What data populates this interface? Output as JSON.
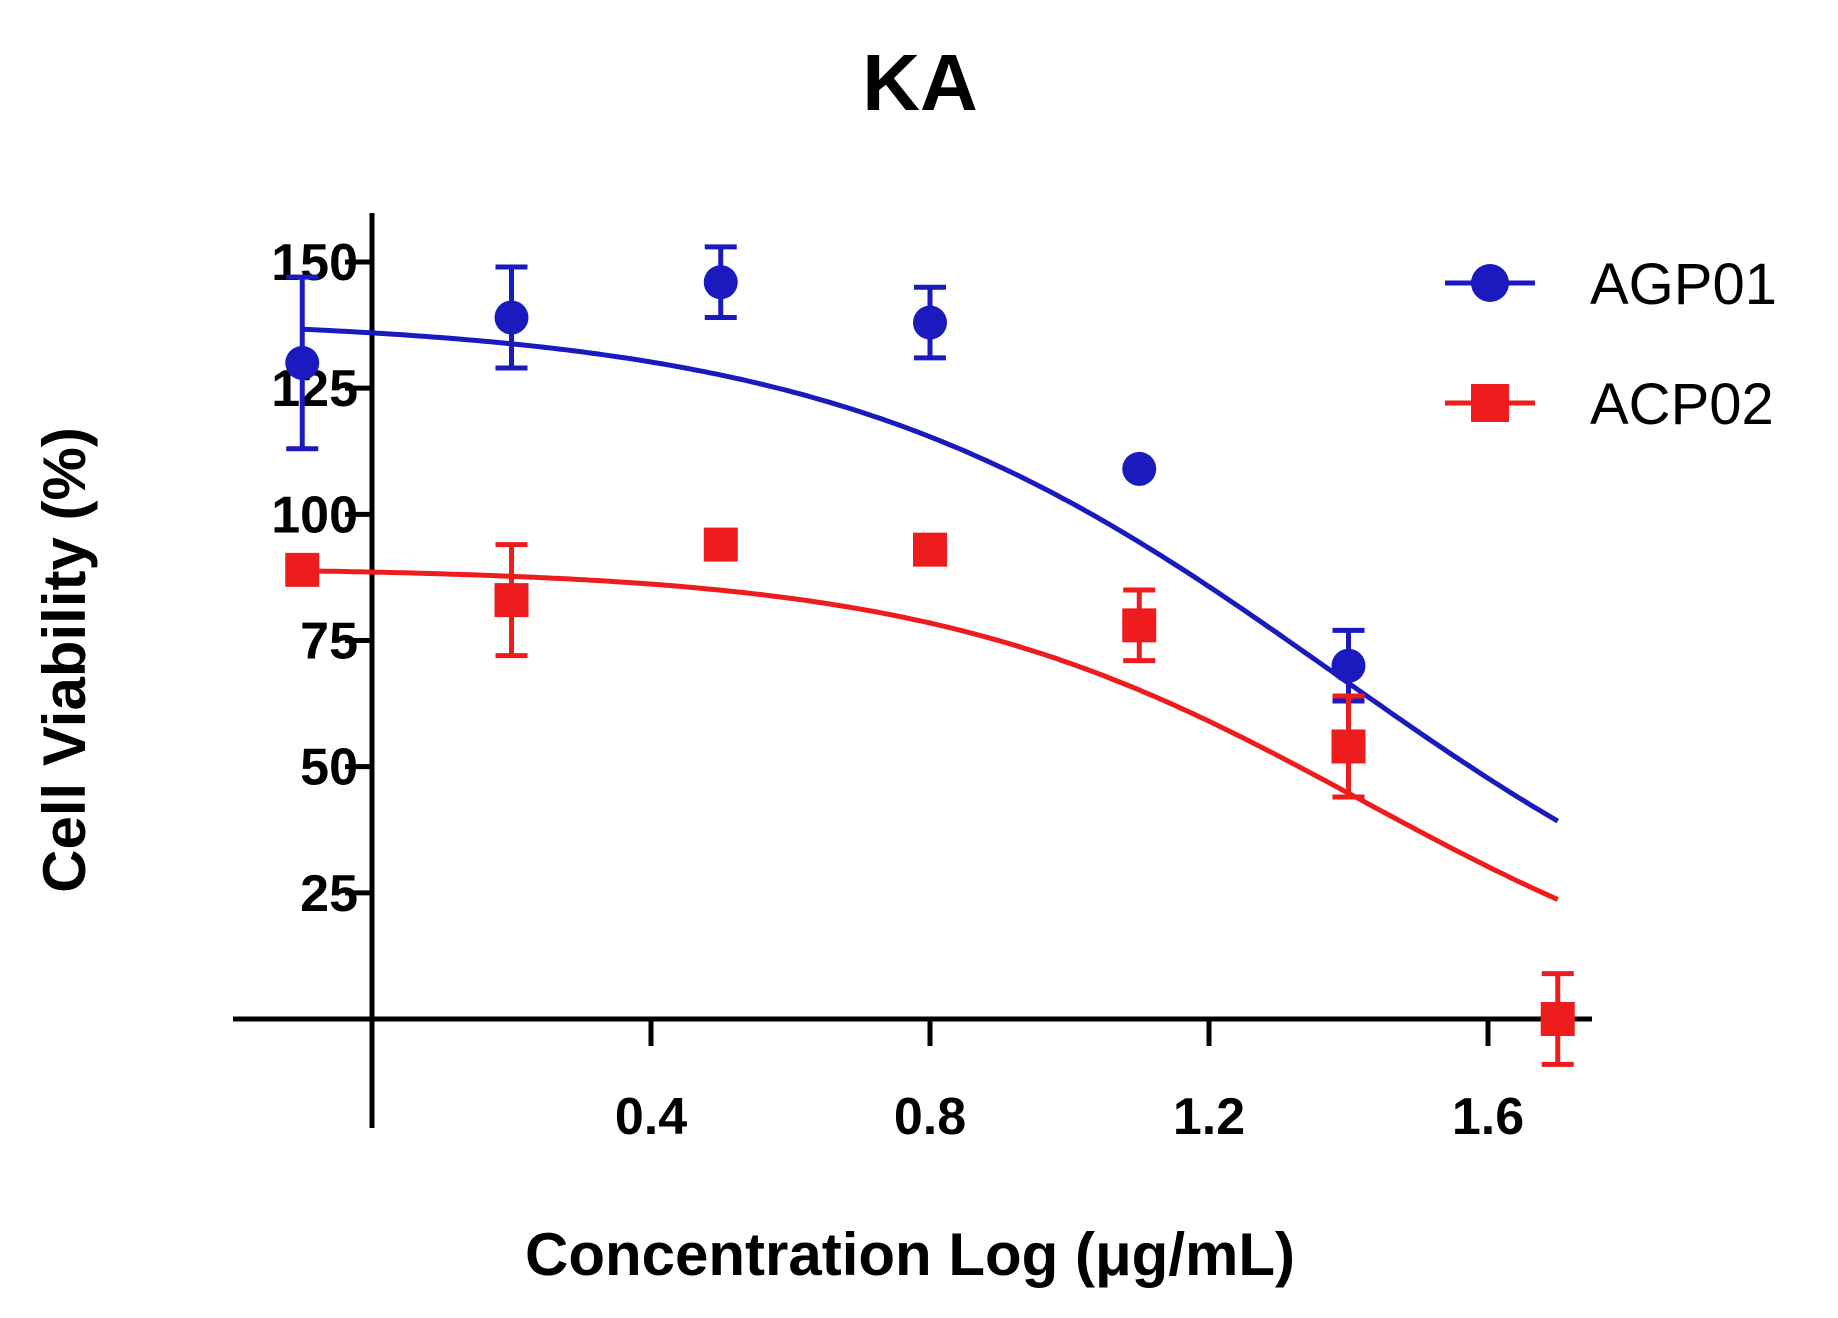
{
  "chart_data": {
    "type": "scatter",
    "title": "KA",
    "xlabel": "Concentration Log (μg/mL)",
    "ylabel": "Cell Viability (%)",
    "xlim": [
      -0.26,
      1.82
    ],
    "ylim": [
      -12,
      160
    ],
    "x_ticks": [
      0.4,
      0.8,
      1.2,
      1.6
    ],
    "x_tick_labels": [
      "0.4",
      "0.8",
      "1.2",
      "1.6"
    ],
    "y_ticks": [
      25,
      50,
      75,
      100,
      125,
      150
    ],
    "y_tick_labels": [
      "25",
      "50",
      "75",
      "100",
      "125",
      "150"
    ],
    "grid": false,
    "legend_position": "top-right",
    "series": [
      {
        "name": "AGP01",
        "color": "#1a1abf",
        "marker": "circle",
        "x": [
          -0.1,
          0.2,
          0.5,
          0.8,
          1.1,
          1.4,
          1.7
        ],
        "y": [
          130,
          139,
          146,
          138,
          109,
          70,
          0
        ],
        "error": [
          17,
          10,
          7,
          7,
          0,
          7,
          0
        ],
        "fit": {
          "top": 139,
          "bottom": -2,
          "logIC50": 1.38,
          "hill": -1.2
        }
      },
      {
        "name": "ACP02",
        "color": "#ee1c1c",
        "marker": "square",
        "x": [
          -0.1,
          0.2,
          0.5,
          0.8,
          1.1,
          1.4,
          1.7
        ],
        "y": [
          89,
          83,
          94,
          93,
          78,
          54,
          0
        ],
        "error": [
          0,
          11,
          0,
          0,
          7,
          10,
          9
        ],
        "fit": {
          "top": 89.5,
          "bottom": -3,
          "logIC50": 1.42,
          "hill": -1.4
        }
      }
    ]
  }
}
